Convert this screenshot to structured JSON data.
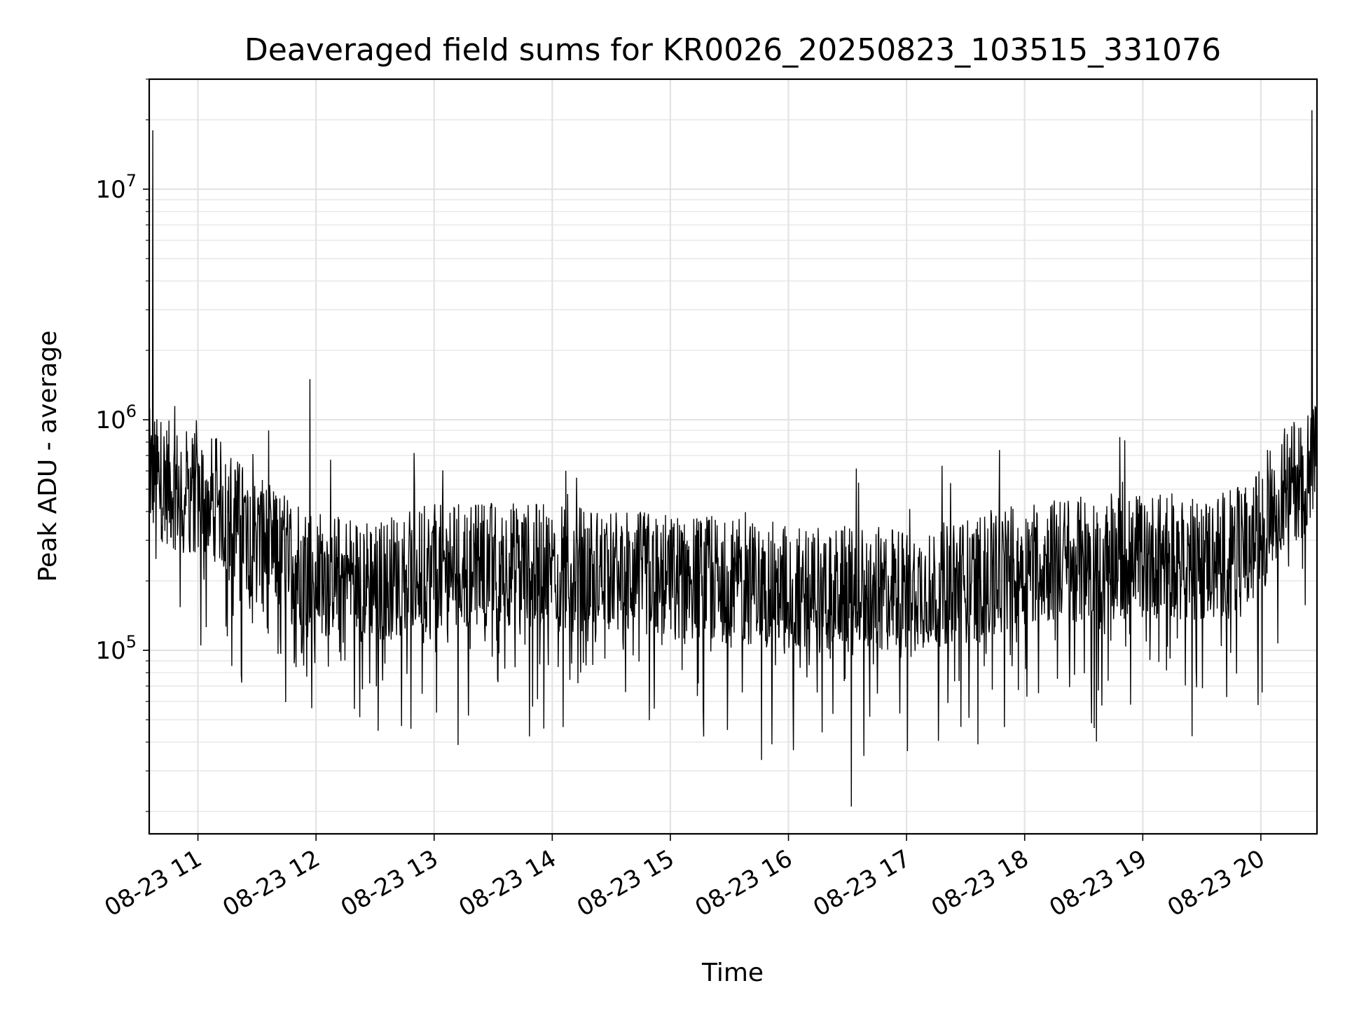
{
  "chart_data": {
    "type": "line",
    "title": "Deaveraged field sums for KR0026_20250823_103515_331076",
    "xlabel": "Time",
    "ylabel": "Peak ADU - average",
    "y_scale": "log",
    "ylim": [
      16000,
      30000000
    ],
    "xlim": [
      "2025-08-23 10:35:15",
      "2025-08-23 20:28:30"
    ],
    "x_ticks": [
      {
        "value": "2025-08-23 11:00",
        "label": "08-23 11"
      },
      {
        "value": "2025-08-23 12:00",
        "label": "08-23 12"
      },
      {
        "value": "2025-08-23 13:00",
        "label": "08-23 13"
      },
      {
        "value": "2025-08-23 14:00",
        "label": "08-23 14"
      },
      {
        "value": "2025-08-23 15:00",
        "label": "08-23 15"
      },
      {
        "value": "2025-08-23 16:00",
        "label": "08-23 16"
      },
      {
        "value": "2025-08-23 17:00",
        "label": "08-23 17"
      },
      {
        "value": "2025-08-23 18:00",
        "label": "08-23 18"
      },
      {
        "value": "2025-08-23 19:00",
        "label": "08-23 19"
      },
      {
        "value": "2025-08-23 20:00",
        "label": "08-23 20"
      }
    ],
    "y_ticks": [
      {
        "value": 100000,
        "base": "10",
        "exp": "5"
      },
      {
        "value": 1000000,
        "base": "10",
        "exp": "6"
      },
      {
        "value": 10000000,
        "base": "10",
        "exp": "7"
      }
    ],
    "grid": true,
    "line_color": "#000000",
    "series": [
      {
        "x": [
          "2025-08-23 10:35",
          "2025-08-23 10:50",
          "2025-08-23 11:10",
          "2025-08-23 11:30",
          "2025-08-23 12:00",
          "2025-08-23 12:30",
          "2025-08-23 13:00",
          "2025-08-23 13:30",
          "2025-08-23 14:00",
          "2025-08-23 14:30",
          "2025-08-23 15:00",
          "2025-08-23 15:30",
          "2025-08-23 16:00",
          "2025-08-23 16:30",
          "2025-08-23 17:00",
          "2025-08-23 17:30",
          "2025-08-23 18:00",
          "2025-08-23 18:30",
          "2025-08-23 19:00",
          "2025-08-23 19:30",
          "2025-08-23 19:55",
          "2025-08-23 20:10",
          "2025-08-23 20:28"
        ],
        "y": [
          600000,
          500000,
          450000,
          300000,
          220000,
          200000,
          230000,
          240000,
          230000,
          220000,
          210000,
          200000,
          190000,
          180000,
          185000,
          200000,
          240000,
          250000,
          260000,
          250000,
          280000,
          500000,
          650000
        ]
      }
    ],
    "annotations_peaks": [
      {
        "x": "2025-08-23 10:37",
        "y": 18000000
      },
      {
        "x": "2025-08-23 11:57",
        "y": 1500000
      },
      {
        "x": "2025-08-23 20:26",
        "y": 22000000
      }
    ],
    "annotations_dips": [
      {
        "x": "2025-08-23 16:32",
        "y": 21000
      }
    ]
  }
}
